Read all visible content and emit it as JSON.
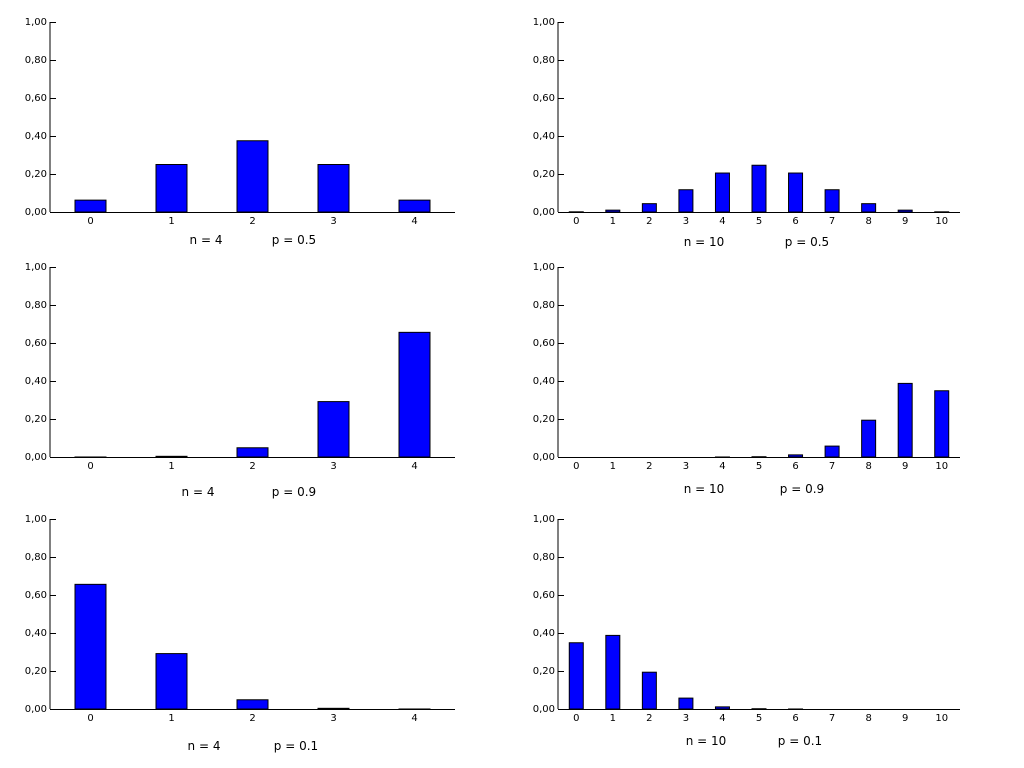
{
  "colors": {
    "bar_fill": "#0000ff",
    "bar_stroke": "#000000",
    "axis": "#000000",
    "background": "#ffffff"
  },
  "y_ticks": [
    "0,00",
    "0,20",
    "0,40",
    "0,60",
    "0,80",
    "1,00"
  ],
  "chart_data": [
    {
      "type": "bar",
      "ylim": [
        0,
        1
      ],
      "grid": false,
      "n_label": "n = 4",
      "p_label": "p = 0.5",
      "categories": [
        "0",
        "1",
        "2",
        "3",
        "4"
      ],
      "values": [
        0.0625,
        0.25,
        0.375,
        0.25,
        0.0625
      ]
    },
    {
      "type": "bar",
      "ylim": [
        0,
        1
      ],
      "grid": false,
      "n_label": "n = 10",
      "p_label": "p = 0.5",
      "categories": [
        "0",
        "1",
        "2",
        "3",
        "4",
        "5",
        "6",
        "7",
        "8",
        "9",
        "10"
      ],
      "values": [
        0.001,
        0.0098,
        0.0439,
        0.1172,
        0.2051,
        0.2461,
        0.2051,
        0.1172,
        0.0439,
        0.0098,
        0.001
      ]
    },
    {
      "type": "bar",
      "ylim": [
        0,
        1
      ],
      "grid": false,
      "n_label": "n = 4",
      "p_label": "p = 0.9",
      "categories": [
        "0",
        "1",
        "2",
        "3",
        "4"
      ],
      "values": [
        0.0001,
        0.0036,
        0.0486,
        0.2916,
        0.6561
      ]
    },
    {
      "type": "bar",
      "ylim": [
        0,
        1
      ],
      "grid": false,
      "n_label": "n = 10",
      "p_label": "p = 0.9",
      "categories": [
        "0",
        "1",
        "2",
        "3",
        "4",
        "5",
        "6",
        "7",
        "8",
        "9",
        "10"
      ],
      "values": [
        0,
        0,
        0,
        0,
        0.0001,
        0.0015,
        0.0112,
        0.0574,
        0.1937,
        0.3874,
        0.3487
      ]
    },
    {
      "type": "bar",
      "ylim": [
        0,
        1
      ],
      "grid": false,
      "n_label": "n = 4",
      "p_label": "p = 0.1",
      "categories": [
        "0",
        "1",
        "2",
        "3",
        "4"
      ],
      "values": [
        0.6561,
        0.2916,
        0.0486,
        0.0036,
        0.0001
      ]
    },
    {
      "type": "bar",
      "ylim": [
        0,
        1
      ],
      "grid": false,
      "n_label": "n = 10",
      "p_label": "p = 0.1",
      "categories": [
        "0",
        "1",
        "2",
        "3",
        "4",
        "5",
        "6",
        "7",
        "8",
        "9",
        "10"
      ],
      "values": [
        0.3487,
        0.3874,
        0.1937,
        0.0574,
        0.0112,
        0.0015,
        0.0001,
        0,
        0,
        0,
        0
      ]
    }
  ]
}
